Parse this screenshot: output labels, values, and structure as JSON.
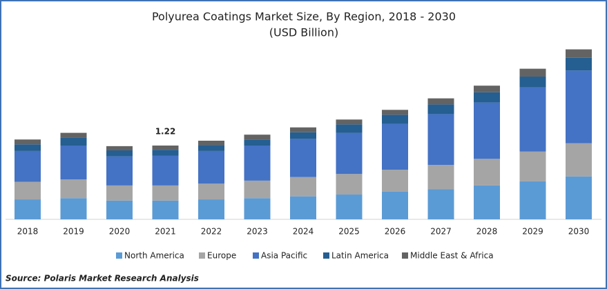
{
  "chart_data": {
    "type": "stacked-bar",
    "title": "Polyurea Coatings Market Size, By Region, 2018 - 2030",
    "subtitle": "(USD Billion)",
    "categories": [
      "2018",
      "2019",
      "2020",
      "2021",
      "2022",
      "2023",
      "2024",
      "2025",
      "2026",
      "2027",
      "2028",
      "2029",
      "2030"
    ],
    "series": [
      {
        "name": "North America",
        "color": "#5b9bd5",
        "values": [
          0.33,
          0.35,
          0.31,
          0.31,
          0.33,
          0.35,
          0.38,
          0.41,
          0.46,
          0.5,
          0.56,
          0.63,
          0.71
        ]
      },
      {
        "name": "Europe",
        "color": "#a5a5a5",
        "values": [
          0.29,
          0.31,
          0.25,
          0.25,
          0.26,
          0.29,
          0.32,
          0.34,
          0.36,
          0.4,
          0.44,
          0.49,
          0.55
        ]
      },
      {
        "name": "Asia Pacific",
        "color": "#4472c4",
        "values": [
          0.51,
          0.56,
          0.48,
          0.49,
          0.54,
          0.58,
          0.63,
          0.68,
          0.76,
          0.84,
          0.93,
          1.06,
          1.2
        ]
      },
      {
        "name": "Latin America",
        "color": "#255e91",
        "values": [
          0.11,
          0.13,
          0.1,
          0.1,
          0.1,
          0.1,
          0.11,
          0.14,
          0.15,
          0.16,
          0.17,
          0.18,
          0.21
        ]
      },
      {
        "name": "Middle East & Africa",
        "color": "#636363",
        "values": [
          0.08,
          0.08,
          0.07,
          0.07,
          0.07,
          0.08,
          0.08,
          0.08,
          0.08,
          0.1,
          0.11,
          0.13,
          0.14
        ]
      }
    ],
    "annotation": {
      "text": "1.22",
      "category": "2021"
    },
    "source": "Source: Polaris  Market Research Analysis"
  }
}
